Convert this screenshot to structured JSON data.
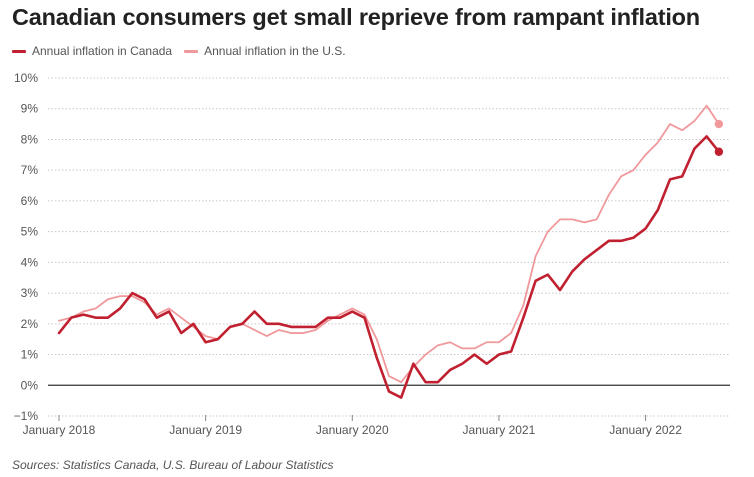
{
  "page": {
    "title": "Canadian consumers get small reprieve from rampant inflation",
    "source": "Sources: Statistics Canada, U.S. Bureau of Labour Statistics"
  },
  "legend": {
    "canada_label": "Annual inflation in Canada",
    "us_label": "Annual inflation in the U.S."
  },
  "colors": {
    "canada": "#c0202f",
    "us": "#f0999c",
    "zero_line": "#333333",
    "grid": "#c8c8c8"
  },
  "chart_data": {
    "type": "line",
    "title": "Canadian consumers get small reprieve from rampant inflation",
    "xlabel": "",
    "ylabel": "",
    "ylim": [
      -1,
      10
    ],
    "yticks": [
      -1,
      0,
      1,
      2,
      3,
      4,
      5,
      6,
      7,
      8,
      9,
      10
    ],
    "ytick_labels": [
      "−1%",
      "0%",
      "1%",
      "2%",
      "3%",
      "4%",
      "5%",
      "6%",
      "7%",
      "8%",
      "9%",
      "10%"
    ],
    "x_start": "2018-01",
    "x_end": "2022-07",
    "xticks": [
      "2018-01",
      "2019-01",
      "2020-01",
      "2021-01",
      "2022-01"
    ],
    "xtick_labels": [
      "January 2018",
      "January 2019",
      "January 2020",
      "January 2021",
      "January 2022"
    ],
    "grid": true,
    "legend_position": "top-left",
    "last_point_marker": true,
    "series": [
      {
        "name": "Annual inflation in Canada",
        "color": "#c0202f",
        "values": [
          1.7,
          2.2,
          2.3,
          2.2,
          2.2,
          2.5,
          3.0,
          2.8,
          2.2,
          2.4,
          1.7,
          2.0,
          1.4,
          1.5,
          1.9,
          2.0,
          2.4,
          2.0,
          2.0,
          1.9,
          1.9,
          1.9,
          2.2,
          2.2,
          2.4,
          2.2,
          0.9,
          -0.2,
          -0.4,
          0.7,
          0.1,
          0.1,
          0.5,
          0.7,
          1.0,
          0.7,
          1.0,
          1.1,
          2.2,
          3.4,
          3.6,
          3.1,
          3.7,
          4.1,
          4.4,
          4.7,
          4.7,
          4.8,
          5.1,
          5.7,
          6.7,
          6.8,
          7.7,
          8.1,
          7.6
        ]
      },
      {
        "name": "Annual inflation in the U.S.",
        "color": "#f0999c",
        "values": [
          2.1,
          2.2,
          2.4,
          2.5,
          2.8,
          2.9,
          2.9,
          2.7,
          2.3,
          2.5,
          2.2,
          1.9,
          1.6,
          1.5,
          1.9,
          2.0,
          1.8,
          1.6,
          1.8,
          1.7,
          1.7,
          1.8,
          2.1,
          2.3,
          2.5,
          2.3,
          1.5,
          0.3,
          0.1,
          0.6,
          1.0,
          1.3,
          1.4,
          1.2,
          1.2,
          1.4,
          1.4,
          1.7,
          2.6,
          4.2,
          5.0,
          5.4,
          5.4,
          5.3,
          5.4,
          6.2,
          6.8,
          7.0,
          7.5,
          7.9,
          8.5,
          8.3,
          8.6,
          9.1,
          8.5
        ]
      }
    ]
  }
}
